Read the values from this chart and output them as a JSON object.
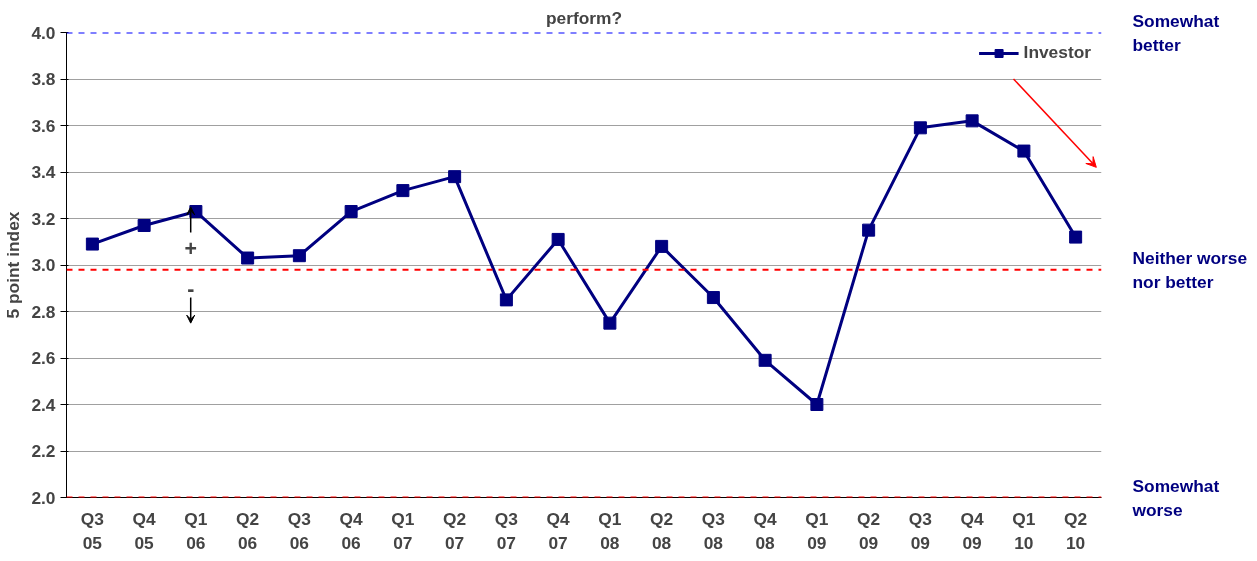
{
  "chart_data": {
    "type": "line",
    "title": "perform?",
    "ylabel": "5 point index",
    "categories": [
      "Q3\n05",
      "Q4\n05",
      "Q1\n06",
      "Q2\n06",
      "Q3\n06",
      "Q4\n06",
      "Q1\n07",
      "Q2\n07",
      "Q3\n07",
      "Q4\n07",
      "Q1\n08",
      "Q2\n08",
      "Q3\n08",
      "Q4\n08",
      "Q1\n09",
      "Q2\n09",
      "Q3\n09",
      "Q4\n09",
      "Q1\n10",
      "Q2\n10"
    ],
    "series": [
      {
        "name": "Investor",
        "color": "#000080",
        "values": [
          3.09,
          3.17,
          3.23,
          3.03,
          3.04,
          3.23,
          3.32,
          3.38,
          2.85,
          3.11,
          2.75,
          3.08,
          2.86,
          2.59,
          2.4,
          3.15,
          3.59,
          3.62,
          3.49,
          3.12
        ]
      }
    ],
    "ylim": [
      2.0,
      4.0
    ],
    "yticks": [
      {
        "value": 2.0,
        "label": "2.0"
      },
      {
        "value": 2.2,
        "label": "2.2"
      },
      {
        "value": 2.4,
        "label": "2.4"
      },
      {
        "value": 2.6,
        "label": "2.6"
      },
      {
        "value": 2.8,
        "label": "2.8"
      },
      {
        "value": 3.0,
        "label": "3.0"
      },
      {
        "value": 3.2,
        "label": "3.2"
      },
      {
        "value": 3.4,
        "label": "3.4"
      },
      {
        "value": 3.6,
        "label": "3.6"
      },
      {
        "value": 3.8,
        "label": "3.8"
      },
      {
        "value": 4.0,
        "label": "4.0"
      }
    ],
    "ref_lines": [
      {
        "axis": "y",
        "value": 4.0,
        "label": "Somewhat\nbetter",
        "color": "#0000ff",
        "line_style": "dashed"
      },
      {
        "axis": "y",
        "value": 2.98,
        "label": "Neither worse\nnor better",
        "color": "#ff0000",
        "line_style": "dashed"
      },
      {
        "axis": "y",
        "value": 2.0,
        "label": "Somewhat\nworse",
        "color": "#ff0000",
        "line_style": "dashed"
      }
    ],
    "annotations": [
      "+",
      "-"
    ],
    "grid": "y",
    "legend": "top right",
    "marker": "square",
    "line_style": "solid"
  }
}
